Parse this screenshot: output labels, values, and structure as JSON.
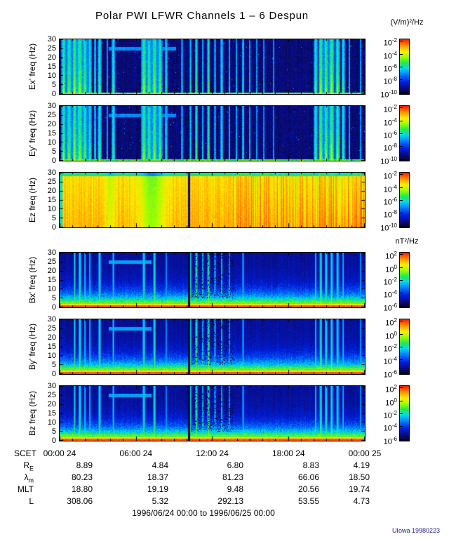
{
  "title": "Polar PWI LFWR Channels 1 – 6 Despun",
  "credit": "UIowa 19980223",
  "time_range": "1996/06/24 00:00 to 1996/06/25 00:00",
  "colorbar_units": {
    "electric": "(V/m)²/Hz",
    "magnetic": "nT²/Hz"
  },
  "chart_data": {
    "type": "heatmap",
    "title": "Polar PWI LFWR Channels 1 – 6 Despun",
    "x_axis": {
      "name": "SCET",
      "tick_labels": [
        "00:00 24",
        "06:00 24",
        "12:00 24",
        "18:00 24",
        "00:00 25"
      ],
      "hours_range": [
        0,
        24
      ]
    },
    "y_axis": {
      "ticks": [
        0,
        5,
        10,
        15,
        20,
        25,
        30
      ],
      "range": [
        0,
        30
      ],
      "unit": "Hz"
    },
    "panels": [
      {
        "id": "ex",
        "ylabel": "Ex' freq (Hz)",
        "style": "electric_quiet",
        "units": "(V/m)²/Hz",
        "colorbar_exponents": [
          -2,
          -4,
          -6,
          -8,
          -10
        ],
        "description": "dark blue quiet background with broadband green burst columns and a narrowband tone near 25 Hz"
      },
      {
        "id": "ey",
        "ylabel": "Ey' freq (Hz)",
        "style": "electric_quiet",
        "units": "(V/m)²/Hz",
        "colorbar_exponents": [
          -2,
          -4,
          -6,
          -8,
          -10
        ],
        "description": "dark blue quiet background with broadband green burst columns and a narrowband tone near 25 Hz"
      },
      {
        "id": "ez",
        "ylabel": "Ez freq (Hz)",
        "style": "electric_intense",
        "units": "(V/m)²/Hz",
        "colorbar_exponents": [
          -2,
          -4,
          -6,
          -8,
          -10
        ],
        "description": "intense yellow-orange broadband emission all day, green dip near 07:00, dark data-gap line near 10:10, reddening toward end of day"
      },
      {
        "id": "bx",
        "ylabel": "Bx' freq (Hz)",
        "style": "magnetic",
        "units": "nT²/Hz",
        "colorbar_exponents": [
          2,
          0,
          -2,
          -4,
          -6
        ],
        "description": "red/orange band below ~3 Hz, blue background above with green speckle, thin yellow burst lines, black speckled gap near 11:00-13:30"
      },
      {
        "id": "by",
        "ylabel": "By' freq (Hz)",
        "style": "magnetic",
        "units": "nT²/Hz",
        "colorbar_exponents": [
          2,
          0,
          -2,
          -4,
          -6
        ],
        "description": "red/orange band below ~3 Hz, blue background above with green speckle, thin yellow burst lines, black speckled gap near 11:00-13:30"
      },
      {
        "id": "bz",
        "ylabel": "Bz freq (Hz)",
        "style": "magnetic",
        "units": "nT²/Hz",
        "colorbar_exponents": [
          2,
          0,
          -2,
          -4,
          -6
        ],
        "description": "red/orange band below ~3 Hz, blue background above with green speckle, thin yellow burst lines, black speckled gap near 11:00-13:30"
      }
    ],
    "features": {
      "bursts_electric": [
        [
          0.012,
          0.005,
          1.0
        ],
        [
          0.03,
          0.006,
          0.9
        ],
        [
          0.048,
          0.005,
          1.1
        ],
        [
          0.065,
          0.007,
          1.0
        ],
        [
          0.082,
          0.005,
          0.9
        ],
        [
          0.098,
          0.004,
          0.8
        ],
        [
          0.115,
          0.003,
          0.6
        ],
        [
          0.13,
          0.004,
          0.9
        ],
        [
          0.155,
          0.002,
          0.4
        ],
        [
          0.175,
          0.004,
          0.8
        ],
        [
          0.275,
          0.006,
          1.0
        ],
        [
          0.292,
          0.005,
          0.9
        ],
        [
          0.31,
          0.006,
          1.0
        ],
        [
          0.328,
          0.005,
          0.9
        ],
        [
          0.348,
          0.003,
          0.6
        ],
        [
          0.4,
          0.002,
          0.5
        ],
        [
          0.428,
          0.002,
          0.6
        ],
        [
          0.447,
          0.003,
          0.8
        ],
        [
          0.468,
          0.002,
          0.6
        ],
        [
          0.487,
          0.003,
          0.8
        ],
        [
          0.508,
          0.002,
          0.5
        ],
        [
          0.53,
          0.003,
          0.7
        ],
        [
          0.555,
          0.002,
          0.5
        ],
        [
          0.578,
          0.002,
          0.5
        ],
        [
          0.6,
          0.003,
          0.6
        ],
        [
          0.622,
          0.002,
          0.5
        ],
        [
          0.645,
          0.002,
          0.4
        ],
        [
          0.668,
          0.002,
          0.4
        ],
        [
          0.7,
          0.002,
          0.3
        ],
        [
          0.838,
          0.004,
          0.9
        ],
        [
          0.855,
          0.005,
          1.1
        ],
        [
          0.872,
          0.005,
          1.0
        ],
        [
          0.89,
          0.006,
          1.1
        ],
        [
          0.91,
          0.005,
          1.0
        ],
        [
          0.928,
          0.004,
          0.8
        ],
        [
          0.948,
          0.002,
          0.5
        ],
        [
          0.985,
          0.002,
          0.4
        ]
      ],
      "bursts_magnetic": [
        [
          0.048,
          0.002,
          0.9
        ],
        [
          0.065,
          0.003,
          1.0
        ],
        [
          0.082,
          0.002,
          0.8
        ],
        [
          0.098,
          0.002,
          0.7
        ],
        [
          0.13,
          0.003,
          1.0
        ],
        [
          0.175,
          0.002,
          0.8
        ],
        [
          0.275,
          0.003,
          0.9
        ],
        [
          0.31,
          0.003,
          0.9
        ],
        [
          0.348,
          0.002,
          0.5
        ],
        [
          0.428,
          0.002,
          0.8
        ],
        [
          0.447,
          0.003,
          1.0
        ],
        [
          0.468,
          0.002,
          0.8
        ],
        [
          0.487,
          0.003,
          1.0
        ],
        [
          0.508,
          0.002,
          0.7
        ],
        [
          0.53,
          0.002,
          0.8
        ],
        [
          0.555,
          0.002,
          0.6
        ],
        [
          0.6,
          0.002,
          0.6
        ],
        [
          0.838,
          0.002,
          0.8
        ],
        [
          0.855,
          0.003,
          1.0
        ],
        [
          0.872,
          0.003,
          0.9
        ],
        [
          0.89,
          0.003,
          1.0
        ],
        [
          0.91,
          0.003,
          0.9
        ],
        [
          0.928,
          0.002,
          0.7
        ],
        [
          0.985,
          0.002,
          0.5
        ]
      ],
      "horizontal_line": {
        "freq_hz": 25,
        "t_start": 0.16,
        "t_end": 0.38
      },
      "data_gap_line_t": 0.423
    },
    "colormap": "rainbow (blue=low, red=high)"
  },
  "ephemeris": {
    "rows": [
      {
        "label_base": "R",
        "label_sub": "E",
        "values": [
          "8.89",
          "4.84",
          "6.80",
          "8.83",
          "4.19"
        ]
      },
      {
        "label_base": "λ",
        "label_sub": "m",
        "values": [
          "80.23",
          "18.37",
          "81.23",
          "66.06",
          "18.50"
        ]
      },
      {
        "label_base": "MLT",
        "label_sub": "",
        "values": [
          "18.80",
          "19.19",
          "9.48",
          "20.56",
          "19.74"
        ]
      },
      {
        "label_base": "L",
        "label_sub": "",
        "values": [
          "308.06",
          "5.32",
          "292.13",
          "53.55",
          "4.73"
        ]
      }
    ]
  }
}
